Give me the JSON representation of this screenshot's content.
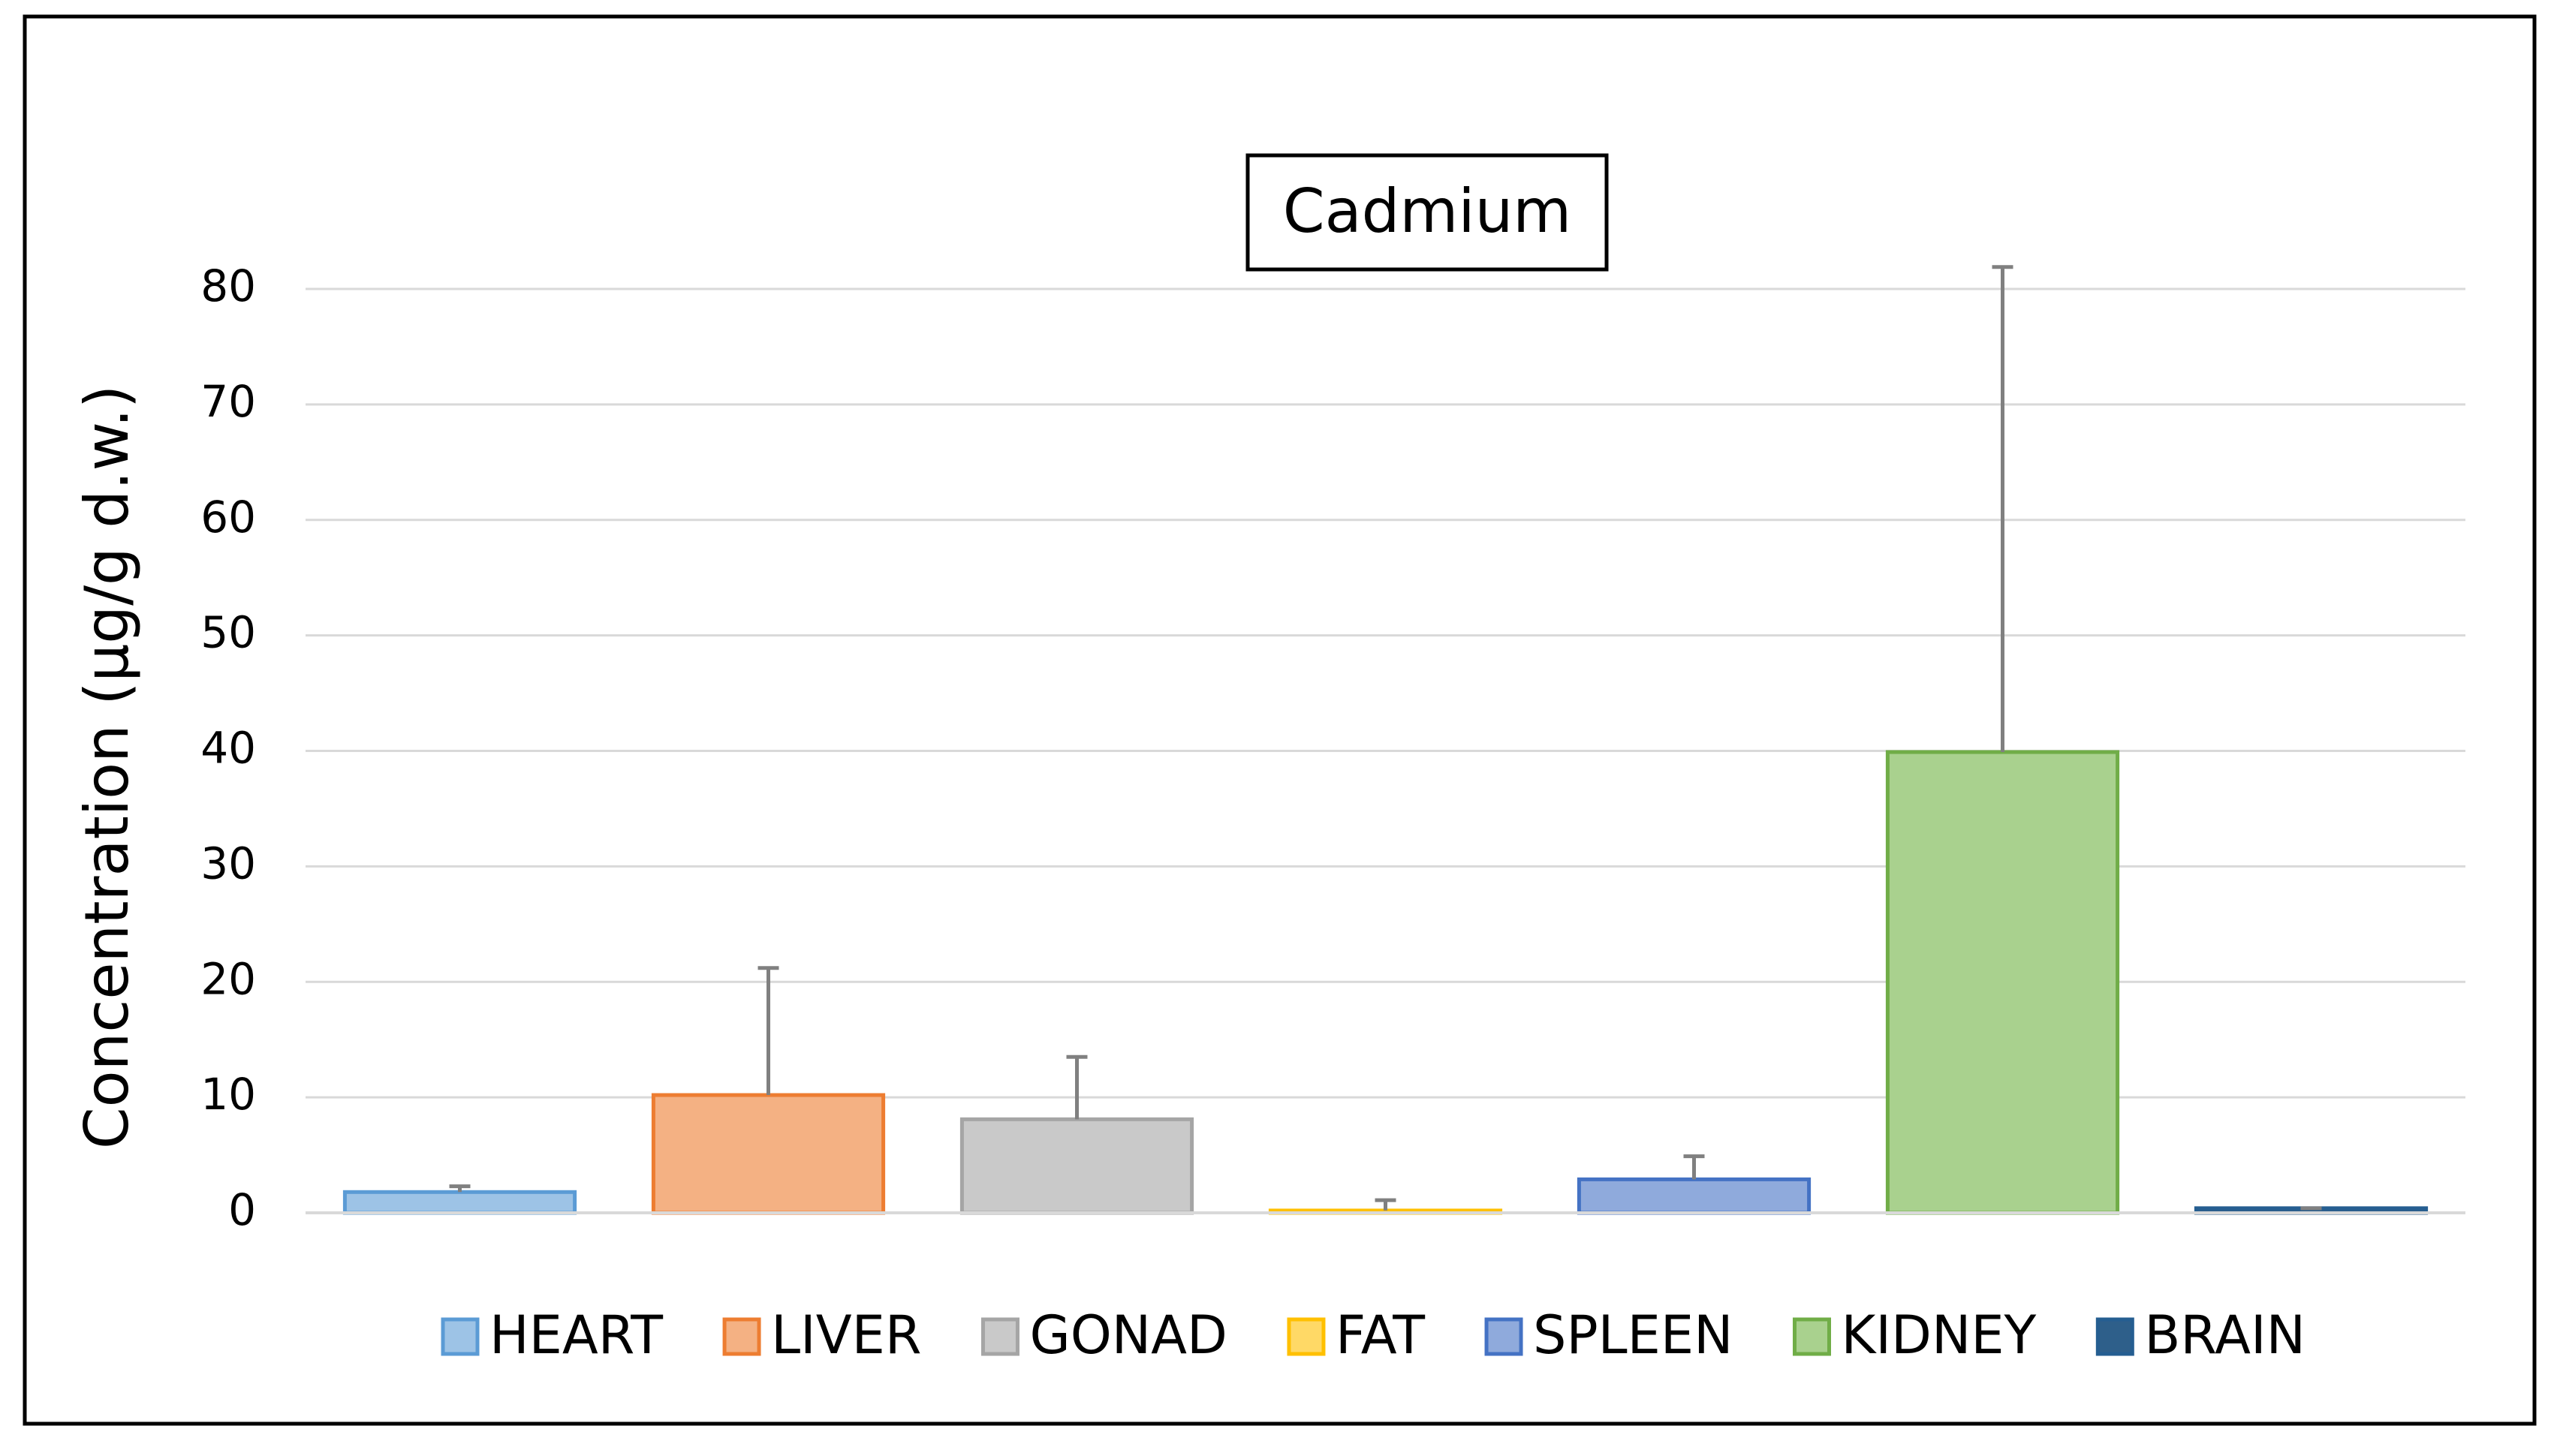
{
  "chart_data": {
    "type": "bar",
    "title": "Cadmium",
    "y_label": "Concentration (µg/g d.w.)",
    "ylim": [
      0,
      80
    ],
    "yticks": [
      0,
      10,
      20,
      30,
      40,
      50,
      60,
      70,
      80
    ],
    "grid": true,
    "legend": "bottom",
    "series": [
      {
        "name": "HEART",
        "color": "#9dc3e6",
        "edgecolor": "#5b9bd5",
        "values": [
          1.8
        ],
        "errors": [
          0.5
        ]
      },
      {
        "name": "LIVER",
        "color": "#f4b183",
        "edgecolor": "#ed7d31",
        "values": [
          10.2
        ],
        "errors": [
          11.0
        ]
      },
      {
        "name": "GONAD",
        "color": "#c9c9c9",
        "edgecolor": "#a5a5a5",
        "values": [
          8.1
        ],
        "errors": [
          5.4
        ]
      },
      {
        "name": "FAT",
        "color": "#ffd966",
        "edgecolor": "#ffc000",
        "values": [
          0.2
        ],
        "errors": [
          0.9
        ]
      },
      {
        "name": "SPLEEN",
        "color": "#8faadc",
        "edgecolor": "#4472c4",
        "values": [
          2.9
        ],
        "errors": [
          2.0
        ]
      },
      {
        "name": "KIDNEY",
        "color": "#a9d18e",
        "edgecolor": "#70ad47",
        "values": [
          39.9
        ],
        "errors": [
          42.0
        ]
      },
      {
        "name": "BRAIN",
        "color": "#2e5f8a",
        "edgecolor": "#255e91",
        "values": [
          0.4
        ],
        "errors": [
          0
        ]
      }
    ]
  }
}
